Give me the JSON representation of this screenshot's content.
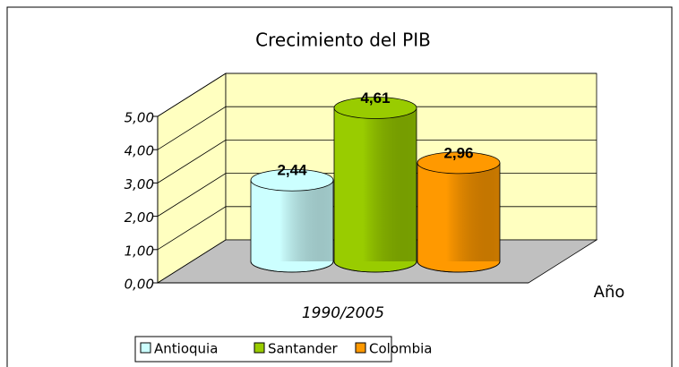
{
  "chart_data": {
    "type": "bar",
    "title": "Crecimiento del PIB",
    "categories": [
      "1990/2005"
    ],
    "series": [
      {
        "name": "Antioquia",
        "color": "#ccffff",
        "values": [
          2.44
        ],
        "value_labels": [
          "2,44"
        ]
      },
      {
        "name": "Santander",
        "color": "#99cc00",
        "values": [
          4.61
        ],
        "value_labels": [
          "4,61"
        ]
      },
      {
        "name": "Colombia",
        "color": "#ff9900",
        "values": [
          2.96
        ],
        "value_labels": [
          "2,96"
        ]
      }
    ],
    "x_label": "Año",
    "ylim": [
      0,
      5
    ],
    "yticks": [
      {
        "value": 0,
        "label": "0,00"
      },
      {
        "value": 1,
        "label": "1,00"
      },
      {
        "value": 2,
        "label": "2,00"
      },
      {
        "value": 3,
        "label": "3,00"
      },
      {
        "value": 4,
        "label": "4,00"
      },
      {
        "value": 5,
        "label": "5,00"
      }
    ],
    "grid": true,
    "legend": "bottom"
  }
}
